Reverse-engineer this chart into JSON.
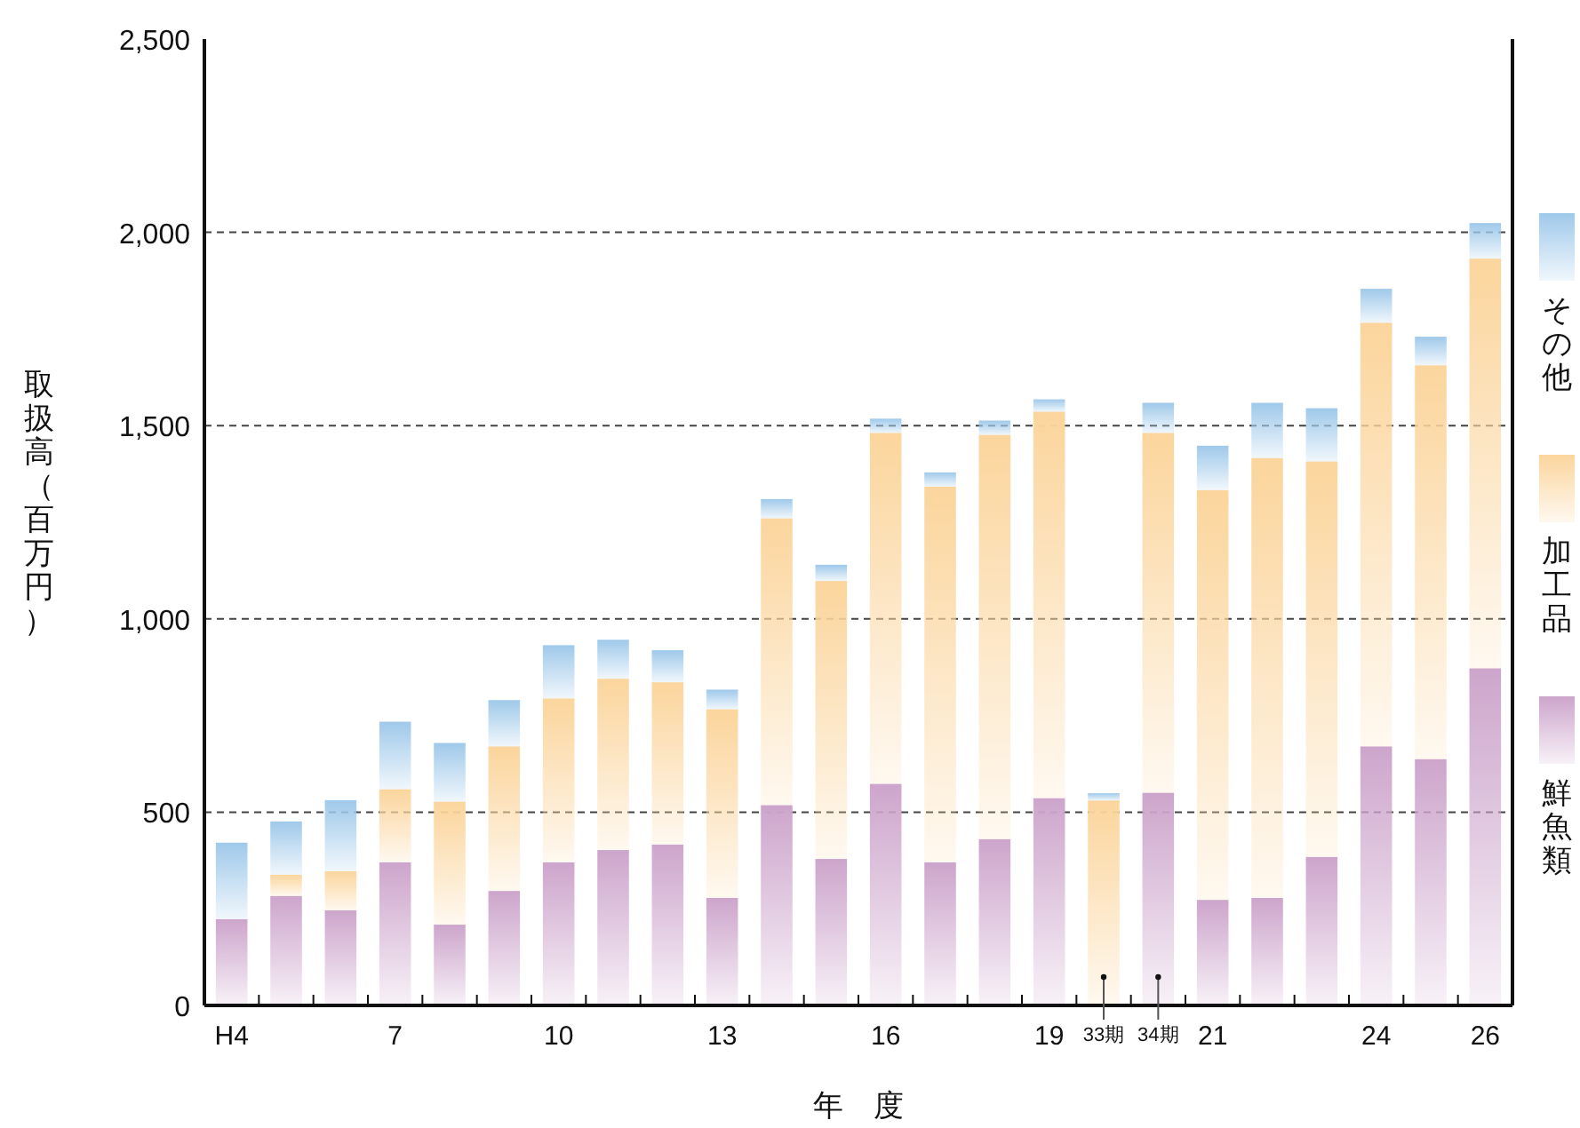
{
  "chart_data": {
    "type": "bar",
    "stacked": true,
    "xlabel": "年　度",
    "ylabel": "取扱高（百万円）",
    "categories": [
      "H4",
      null,
      null,
      "7",
      null,
      null,
      "10",
      null,
      null,
      "13",
      null,
      null,
      "16",
      null,
      null,
      "19",
      "33期",
      "34期",
      "21",
      null,
      null,
      "24",
      null,
      "26"
    ],
    "series": [
      {
        "name": "鮮魚類",
        "color": "#cda5cc",
        "values": [
          223,
          283,
          246,
          370,
          209,
          296,
          370,
          402,
          416,
          278,
          518,
          379,
          573,
          370,
          430,
          536,
          null,
          550,
          273,
          278,
          384,
          670,
          637,
          872
        ]
      },
      {
        "name": "加工品",
        "color": "#fbd59c",
        "values": [
          0,
          55,
          101,
          189,
          318,
          374,
          424,
          443,
          420,
          488,
          742,
          719,
          908,
          972,
          1046,
          1000,
          530,
          931,
          1060,
          1138,
          1023,
          1096,
          1019,
          1060
        ]
      },
      {
        "name": "その他",
        "color": "#9fc9ea",
        "values": [
          198,
          138,
          184,
          175,
          152,
          120,
          138,
          101,
          83,
          51,
          50,
          42,
          37,
          37,
          37,
          32,
          19,
          78,
          115,
          143,
          138,
          88,
          74,
          92
        ]
      }
    ],
    "ylim": [
      0,
      2500
    ],
    "yticks": [
      {
        "value": 0,
        "label": "0"
      },
      {
        "value": 500,
        "label": "500"
      },
      {
        "value": 1000,
        "label": "1,000"
      },
      {
        "value": 1500,
        "label": "1,500"
      },
      {
        "value": 2000,
        "label": "2,000"
      },
      {
        "value": 2500,
        "label": "2,500"
      }
    ],
    "grid": "y",
    "legend": "right"
  }
}
